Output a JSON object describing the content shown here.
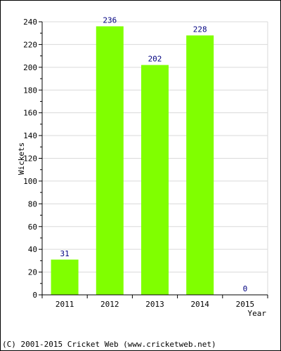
{
  "chart_data": {
    "type": "bar",
    "categories": [
      "2011",
      "2012",
      "2013",
      "2014",
      "2015"
    ],
    "values": [
      31,
      236,
      202,
      228,
      0
    ],
    "data_labels": [
      "31",
      "236",
      "202",
      "228",
      "0"
    ],
    "xlabel": "Year",
    "ylabel": "Wickets",
    "ylim": [
      0,
      240
    ],
    "yticks": [
      0,
      20,
      40,
      60,
      80,
      100,
      120,
      140,
      160,
      180,
      200,
      220,
      240
    ],
    "grid": true,
    "colors": {
      "bar": "#80ff00",
      "data_label": "#000080",
      "grid": "#d9d9d9"
    }
  },
  "footer": {
    "copyright": "(C) 2001-2015 Cricket Web (www.cricketweb.net)"
  }
}
